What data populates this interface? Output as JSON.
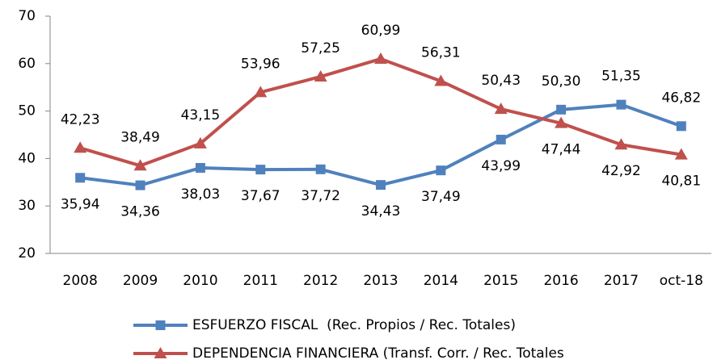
{
  "chart_data": {
    "type": "line",
    "categories": [
      "2008",
      "2009",
      "2010",
      "2011",
      "2012",
      "2013",
      "2014",
      "2015",
      "2016",
      "2017",
      "oct-18"
    ],
    "series": [
      {
        "name": "ESFUERZO FISCAL  (Rec. Propios / Rec. Totales)",
        "color": "#4f81bd",
        "marker": "square",
        "values": [
          35.94,
          34.36,
          38.03,
          37.67,
          37.72,
          34.43,
          37.49,
          43.99,
          50.3,
          51.35,
          46.82
        ],
        "value_labels": [
          "35,94",
          "34,36",
          "38,03",
          "37,67",
          "37,72",
          "34,43",
          "37,49",
          "43,99",
          "50,30",
          "51,35",
          "46,82"
        ]
      },
      {
        "name": "DEPENDENCIA FINANCIERA (Transf. Corr. / Rec. Totales",
        "color": "#c0504d",
        "marker": "triangle",
        "values": [
          42.23,
          38.49,
          43.15,
          53.96,
          57.25,
          60.99,
          56.31,
          50.43,
          47.44,
          42.92,
          40.81
        ],
        "value_labels": [
          "42,23",
          "38,49",
          "43,15",
          "53,96",
          "57,25",
          "60,99",
          "56,31",
          "50,43",
          "47,44",
          "42,92",
          "40,81"
        ]
      }
    ],
    "ylim": [
      20,
      70
    ],
    "yticks": [
      20,
      30,
      40,
      50,
      60,
      70
    ],
    "grid": false,
    "legend": "bottom"
  }
}
